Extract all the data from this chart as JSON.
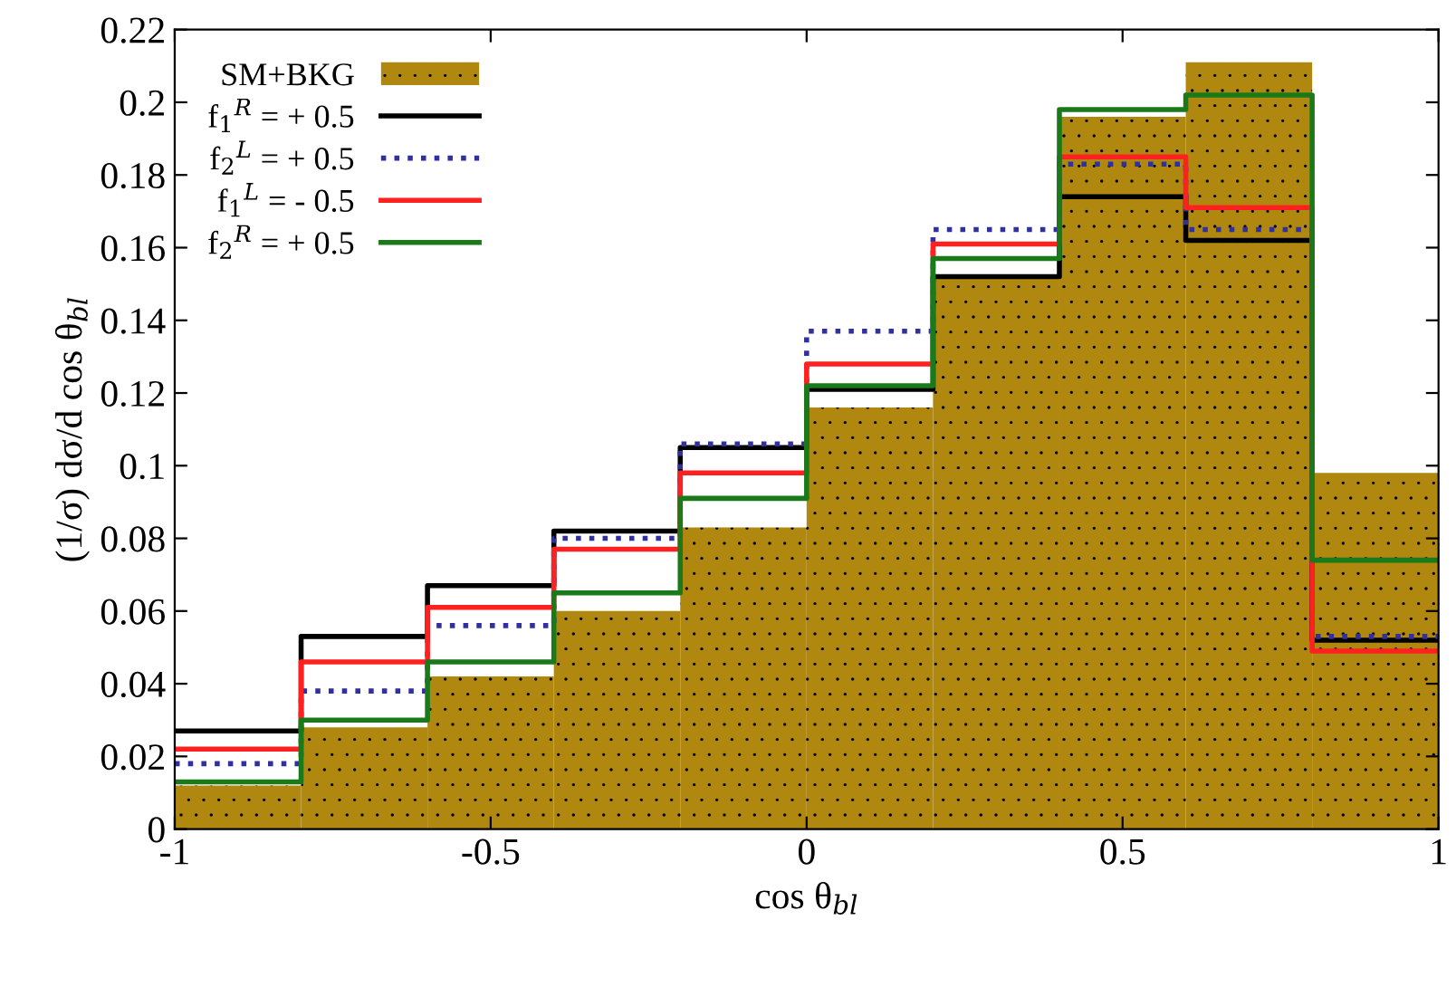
{
  "chart_data": {
    "type": "histogram",
    "xlabel": "cos θ$_{bl}$",
    "ylabel": "(1/σ) dσ/d cos θ$_{bl}$",
    "bins": [
      -1,
      -0.8,
      -0.6,
      -0.4,
      -0.2,
      0,
      0.2,
      0.4,
      0.6,
      0.8,
      1
    ],
    "series": [
      {
        "name": "SM+BKG",
        "color": "#b08810",
        "values": [
          0.012,
          0.028,
          0.042,
          0.06,
          0.083,
          0.116,
          0.152,
          0.196,
          0.211,
          0.098
        ]
      },
      {
        "name": "f$_{1}$$^{R}$ = + 0.5",
        "type": "step",
        "color": "#000000",
        "line_style": "solid",
        "x": [
          -1,
          -0.8,
          -0.6,
          -0.4,
          -0.2,
          0,
          0.2,
          0.4,
          0.6,
          0.8,
          1
        ],
        "values": [
          0.027,
          0.053,
          0.067,
          0.082,
          0.105,
          0.121,
          0.152,
          0.174,
          0.162,
          0.052,
          0.052
        ]
      },
      {
        "name": "f$_{2}$$^{L}$ = + 0.5",
        "type": "step",
        "color": "#3030a0",
        "line_style": "dotted",
        "x": [
          -1,
          -0.8,
          -0.6,
          -0.4,
          -0.2,
          0,
          0.2,
          0.4,
          0.6,
          0.8,
          1
        ],
        "values": [
          0.018,
          0.038,
          0.056,
          0.08,
          0.106,
          0.137,
          0.165,
          0.183,
          0.165,
          0.053,
          0.053
        ]
      },
      {
        "name": "f$_{1}$$^{L}$ = - 0.5",
        "type": "step",
        "color": "#ff2020",
        "line_style": "solid",
        "x": [
          -1,
          -0.8,
          -0.6,
          -0.4,
          -0.2,
          0,
          0.2,
          0.4,
          0.6,
          0.8,
          1
        ],
        "values": [
          0.022,
          0.046,
          0.061,
          0.077,
          0.098,
          0.128,
          0.161,
          0.185,
          0.171,
          0.049,
          0.049
        ]
      },
      {
        "name": "f$_{2}$$^{R}$ = + 0.5",
        "type": "step",
        "color": "#1a7a1a",
        "line_style": "solid",
        "x": [
          -1,
          -0.8,
          -0.6,
          -0.4,
          -0.2,
          0,
          0.2,
          0.4,
          0.6,
          0.8,
          1
        ],
        "values": [
          0.013,
          0.03,
          0.046,
          0.065,
          0.091,
          0.122,
          0.157,
          0.198,
          0.202,
          0.074,
          0.074
        ]
      }
    ],
    "xlim": [
      -1,
      1
    ],
    "xticks": [
      -1,
      -0.5,
      0,
      0.5,
      1
    ],
    "ylim": [
      0,
      0.22
    ],
    "yticks": [
      0,
      0.02,
      0.04,
      0.06,
      0.08,
      0.1,
      0.12,
      0.14,
      0.16,
      0.18,
      0.2,
      0.22
    ],
    "grid": false,
    "legend": "top left"
  }
}
